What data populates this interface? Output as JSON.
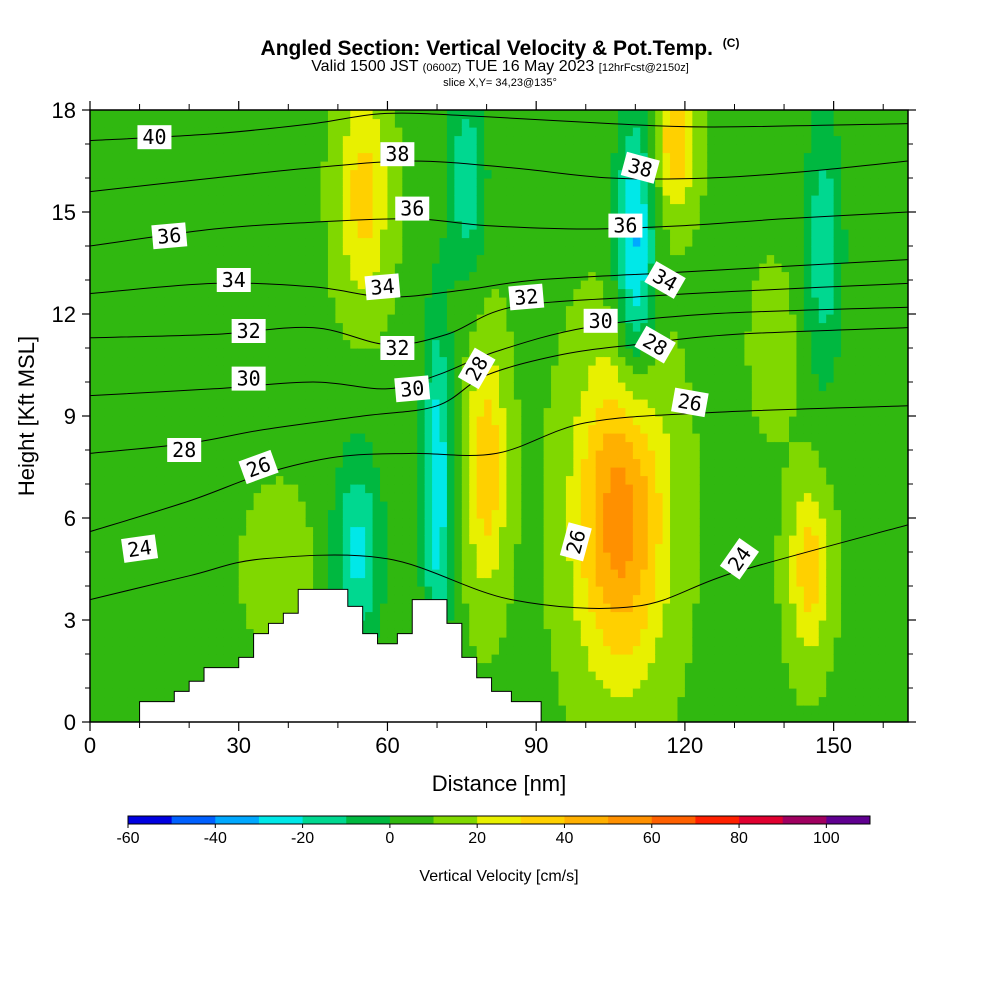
{
  "title": {
    "main": "Angled Section: Vertical Velocity & Pot.Temp.",
    "main_suffix": "(C)",
    "valid_prefix": "Valid 1500 JST",
    "valid_utc": "(0600Z)",
    "valid_date": "TUE 16 May 2023",
    "forecast": "[12hrFcst@2150z]",
    "slice": "slice X,Y= 34,23@135°"
  },
  "chart_data": {
    "type": "heatmap",
    "xlabel": "Distance [nm]",
    "ylabel": "Height [Kft MSL]",
    "xlim": [
      0,
      165
    ],
    "ylim": [
      0,
      18
    ],
    "x_ticks": [
      0,
      30,
      60,
      90,
      120,
      150
    ],
    "y_ticks": [
      0,
      3,
      6,
      9,
      12,
      15,
      18
    ],
    "colorbar": {
      "label": "Vertical Velocity [cm/s]",
      "ticks": [
        -60,
        -40,
        -20,
        0,
        20,
        40,
        60,
        80,
        100
      ],
      "range": [
        -60,
        110
      ],
      "step": 10,
      "colors": [
        "#0000e0",
        "#0060ff",
        "#00a8ff",
        "#00e8e8",
        "#00d890",
        "#00b840",
        "#30b810",
        "#80d800",
        "#e8f000",
        "#ffd000",
        "#ffb000",
        "#ff9000",
        "#ff6000",
        "#ff2000",
        "#e00030",
        "#a00060",
        "#600090"
      ]
    },
    "field": {
      "name": "vertical_velocity",
      "units": "cm/s",
      "background": 8,
      "features": [
        {
          "x": 22,
          "y": 14.8,
          "sx": 14,
          "sy": 4,
          "amp": -7
        },
        {
          "x": 8,
          "y": 4,
          "sx": 10,
          "sy": 3,
          "amp": -6
        },
        {
          "x": 38,
          "y": 4.5,
          "sx": 6,
          "sy": 2,
          "amp": 12
        },
        {
          "x": 55,
          "y": 15.5,
          "sx": 5,
          "sy": 3,
          "amp": 27
        },
        {
          "x": 54,
          "y": 5,
          "sx": 5,
          "sy": 3,
          "amp": -30
        },
        {
          "x": 70,
          "y": 7,
          "sx": 3,
          "sy": 5,
          "amp": -36
        },
        {
          "x": 76,
          "y": 16,
          "sx": 4,
          "sy": 3,
          "amp": -25
        },
        {
          "x": 80,
          "y": 7.5,
          "sx": 4,
          "sy": 3.5,
          "amp": 30
        },
        {
          "x": 107,
          "y": 6,
          "sx": 9,
          "sy": 4.5,
          "amp": 48
        },
        {
          "x": 110,
          "y": 14,
          "sx": 4,
          "sy": 4,
          "amp": -40
        },
        {
          "x": 118,
          "y": 17,
          "sx": 4,
          "sy": 2,
          "amp": 30
        },
        {
          "x": 145,
          "y": 4.5,
          "sx": 4,
          "sy": 2.5,
          "amp": 28
        },
        {
          "x": 148,
          "y": 14,
          "sx": 4,
          "sy": 4,
          "amp": -25
        },
        {
          "x": 138,
          "y": 11,
          "sx": 4,
          "sy": 2,
          "amp": 12
        }
      ]
    },
    "terrain": [
      [
        0,
        0
      ],
      [
        10,
        0
      ],
      [
        10,
        0.6
      ],
      [
        17,
        0.6
      ],
      [
        17,
        0.9
      ],
      [
        20,
        0.9
      ],
      [
        20,
        1.2
      ],
      [
        23,
        1.2
      ],
      [
        23,
        1.6
      ],
      [
        30,
        1.6
      ],
      [
        30,
        1.9
      ],
      [
        33,
        1.9
      ],
      [
        33,
        2.6
      ],
      [
        36,
        2.6
      ],
      [
        36,
        2.9
      ],
      [
        39,
        2.9
      ],
      [
        39,
        3.2
      ],
      [
        42,
        3.2
      ],
      [
        42,
        3.9
      ],
      [
        52,
        3.9
      ],
      [
        52,
        3.4
      ],
      [
        55,
        3.4
      ],
      [
        55,
        2.6
      ],
      [
        58,
        2.6
      ],
      [
        58,
        2.3
      ],
      [
        62,
        2.3
      ],
      [
        62,
        2.6
      ],
      [
        65,
        2.6
      ],
      [
        65,
        3.6
      ],
      [
        72,
        3.6
      ],
      [
        72,
        2.9
      ],
      [
        75,
        2.9
      ],
      [
        75,
        1.9
      ],
      [
        78,
        1.9
      ],
      [
        78,
        1.3
      ],
      [
        81,
        1.3
      ],
      [
        81,
        0.9
      ],
      [
        85,
        0.9
      ],
      [
        85,
        0.6
      ],
      [
        91,
        0.6
      ],
      [
        91,
        0
      ],
      [
        165,
        0
      ]
    ],
    "isentropes": [
      {
        "value": 24,
        "pts": [
          [
            0,
            3.6
          ],
          [
            20,
            4.3
          ],
          [
            35,
            4.8
          ],
          [
            60,
            4.8
          ],
          [
            85,
            3.6
          ],
          [
            110,
            3.4
          ],
          [
            130,
            4.4
          ],
          [
            165,
            5.8
          ]
        ]
      },
      {
        "value": 26,
        "pts": [
          [
            0,
            5.6
          ],
          [
            20,
            6.5
          ],
          [
            35,
            7.3
          ],
          [
            50,
            7.8
          ],
          [
            65,
            7.9
          ],
          [
            82,
            7.9
          ],
          [
            100,
            8.8
          ],
          [
            125,
            9.1
          ],
          [
            165,
            9.3
          ]
        ]
      },
      {
        "value": 28,
        "pts": [
          [
            0,
            7.9
          ],
          [
            20,
            8.2
          ],
          [
            35,
            8.6
          ],
          [
            55,
            9
          ],
          [
            70,
            9.3
          ],
          [
            80,
            10.2
          ],
          [
            95,
            10.8
          ],
          [
            110,
            11.1
          ],
          [
            130,
            11.4
          ],
          [
            165,
            11.6
          ]
        ]
      },
      {
        "value": 30,
        "pts": [
          [
            0,
            9.6
          ],
          [
            25,
            9.8
          ],
          [
            45,
            10
          ],
          [
            60,
            9.8
          ],
          [
            70,
            10.2
          ],
          [
            82,
            10.9
          ],
          [
            100,
            11.6
          ],
          [
            125,
            12
          ],
          [
            165,
            12.2
          ]
        ]
      },
      {
        "value": 32,
        "pts": [
          [
            0,
            11.3
          ],
          [
            25,
            11.4
          ],
          [
            45,
            11.6
          ],
          [
            60,
            11.1
          ],
          [
            72,
            11.4
          ],
          [
            85,
            12.2
          ],
          [
            110,
            12.5
          ],
          [
            135,
            12.7
          ],
          [
            165,
            12.9
          ]
        ]
      },
      {
        "value": 34,
        "pts": [
          [
            0,
            12.6
          ],
          [
            25,
            12.9
          ],
          [
            45,
            12.8
          ],
          [
            60,
            12.5
          ],
          [
            75,
            12.7
          ],
          [
            90,
            13
          ],
          [
            115,
            13.2
          ],
          [
            140,
            13.4
          ],
          [
            165,
            13.6
          ]
        ]
      },
      {
        "value": 36,
        "pts": [
          [
            0,
            14
          ],
          [
            25,
            14.5
          ],
          [
            45,
            14.7
          ],
          [
            65,
            14.8
          ],
          [
            80,
            14.6
          ],
          [
            100,
            14.5
          ],
          [
            120,
            14.6
          ],
          [
            140,
            14.8
          ],
          [
            165,
            15
          ]
        ]
      },
      {
        "value": 38,
        "pts": [
          [
            0,
            15.6
          ],
          [
            25,
            16
          ],
          [
            45,
            16.3
          ],
          [
            65,
            16.5
          ],
          [
            85,
            16.3
          ],
          [
            105,
            16
          ],
          [
            125,
            16
          ],
          [
            145,
            16.2
          ],
          [
            165,
            16.5
          ]
        ]
      },
      {
        "value": 40,
        "pts": [
          [
            0,
            17.1
          ],
          [
            25,
            17.3
          ],
          [
            45,
            17.6
          ],
          [
            60,
            17.9
          ],
          [
            80,
            17.8
          ],
          [
            105,
            17.6
          ],
          [
            125,
            17.5
          ],
          [
            165,
            17.6
          ]
        ]
      }
    ],
    "contour_labels": [
      {
        "text": "40",
        "x": 13,
        "y": 17.2,
        "angle": 0
      },
      {
        "text": "38",
        "x": 62,
        "y": 16.7,
        "angle": 0
      },
      {
        "text": "38",
        "x": 111,
        "y": 16.3,
        "angle": 15
      },
      {
        "text": "36",
        "x": 16,
        "y": 14.3,
        "angle": -5
      },
      {
        "text": "36",
        "x": 65,
        "y": 15.1,
        "angle": 0
      },
      {
        "text": "36",
        "x": 108,
        "y": 14.6,
        "angle": 0
      },
      {
        "text": "34",
        "x": 29,
        "y": 13,
        "angle": 0
      },
      {
        "text": "34",
        "x": 59,
        "y": 12.8,
        "angle": -5
      },
      {
        "text": "34",
        "x": 116,
        "y": 13,
        "angle": 30
      },
      {
        "text": "32",
        "x": 32,
        "y": 11.5,
        "angle": 0
      },
      {
        "text": "32",
        "x": 62,
        "y": 11,
        "angle": 0
      },
      {
        "text": "32",
        "x": 88,
        "y": 12.5,
        "angle": -5
      },
      {
        "text": "30",
        "x": 103,
        "y": 11.8,
        "angle": 0
      },
      {
        "text": "30",
        "x": 32,
        "y": 10.1,
        "angle": 0
      },
      {
        "text": "30",
        "x": 65,
        "y": 9.8,
        "angle": -5
      },
      {
        "text": "28",
        "x": 78,
        "y": 10.4,
        "angle": -60
      },
      {
        "text": "28",
        "x": 114,
        "y": 11.1,
        "angle": 30
      },
      {
        "text": "28",
        "x": 19,
        "y": 8,
        "angle": 0
      },
      {
        "text": "26",
        "x": 121,
        "y": 9.4,
        "angle": 10
      },
      {
        "text": "26",
        "x": 34,
        "y": 7.5,
        "angle": -20
      },
      {
        "text": "26",
        "x": 98,
        "y": 5.3,
        "angle": -75
      },
      {
        "text": "24",
        "x": 10,
        "y": 5.1,
        "angle": -8
      },
      {
        "text": "24",
        "x": 131,
        "y": 4.8,
        "angle": -55
      }
    ]
  }
}
